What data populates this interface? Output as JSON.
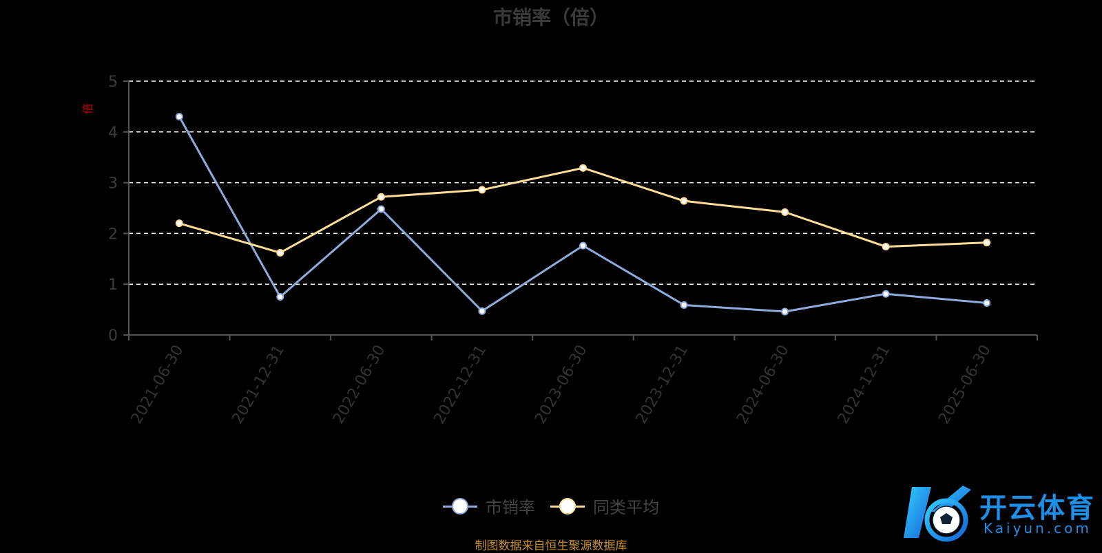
{
  "chart_data": {
    "type": "line",
    "title": "市销率（倍）",
    "ylabel": "倍",
    "ylim": [
      0,
      5
    ],
    "yticks": [
      "0",
      "1",
      "2",
      "3",
      "4",
      "5"
    ],
    "categories": [
      "2021-06-30",
      "2021-12-31",
      "2022-06-30",
      "2022-12-31",
      "2023-06-30",
      "2023-12-31",
      "2024-06-30",
      "2024-12-31",
      "2025-06-30"
    ],
    "series": [
      {
        "name": "市销率",
        "values": [
          4.3,
          0.75,
          2.48,
          0.47,
          1.76,
          0.59,
          0.46,
          0.81,
          0.63
        ],
        "color": "#8faadc"
      },
      {
        "name": "同类平均",
        "values": [
          2.2,
          1.62,
          2.72,
          2.86,
          3.29,
          2.64,
          2.42,
          1.74,
          1.82
        ],
        "color": "#ffdd99"
      }
    ],
    "grid": true,
    "legend": "bottom-center"
  },
  "source": "制图数据来自恒生聚源数据库",
  "logo": {
    "cn": "开云体育",
    "en": "Kaiyun.com"
  },
  "colors": {
    "background": "#000000",
    "grid": "#ffffff",
    "axis": "#555555",
    "ylabel": "#cc0000",
    "source": "#c8902c",
    "logo": "#1e8fe8"
  }
}
